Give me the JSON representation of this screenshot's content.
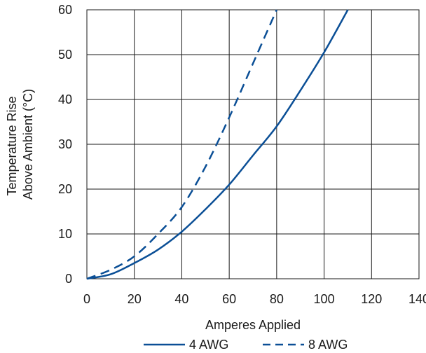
{
  "chart_data": {
    "type": "line",
    "xlabel": "Amperes Applied",
    "ylabel": [
      "Temperature Rise",
      "Above Ambient (°C)"
    ],
    "xlim": [
      0,
      140
    ],
    "ylim": [
      0,
      60
    ],
    "xticks": [
      0,
      20,
      40,
      60,
      80,
      100,
      120,
      140
    ],
    "yticks": [
      0,
      10,
      20,
      30,
      40,
      50,
      60
    ],
    "grid": true,
    "legend": "bottom",
    "series": [
      {
        "name": "4 AWG",
        "style": "solid",
        "color": "#0b4f96",
        "points": [
          [
            0,
            0
          ],
          [
            10,
            1
          ],
          [
            20,
            3.5
          ],
          [
            30,
            6.5
          ],
          [
            40,
            10.5
          ],
          [
            50,
            15.5
          ],
          [
            60,
            21
          ],
          [
            70,
            27.5
          ],
          [
            80,
            34
          ],
          [
            90,
            42
          ],
          [
            100,
            50.5
          ],
          [
            110,
            60
          ]
        ]
      },
      {
        "name": "8 AWG",
        "style": "dashed",
        "color": "#0b4f96",
        "points": [
          [
            0,
            0
          ],
          [
            10,
            2
          ],
          [
            20,
            5
          ],
          [
            30,
            10
          ],
          [
            40,
            16
          ],
          [
            50,
            25
          ],
          [
            60,
            36
          ],
          [
            70,
            48
          ],
          [
            80,
            60
          ]
        ]
      }
    ]
  }
}
